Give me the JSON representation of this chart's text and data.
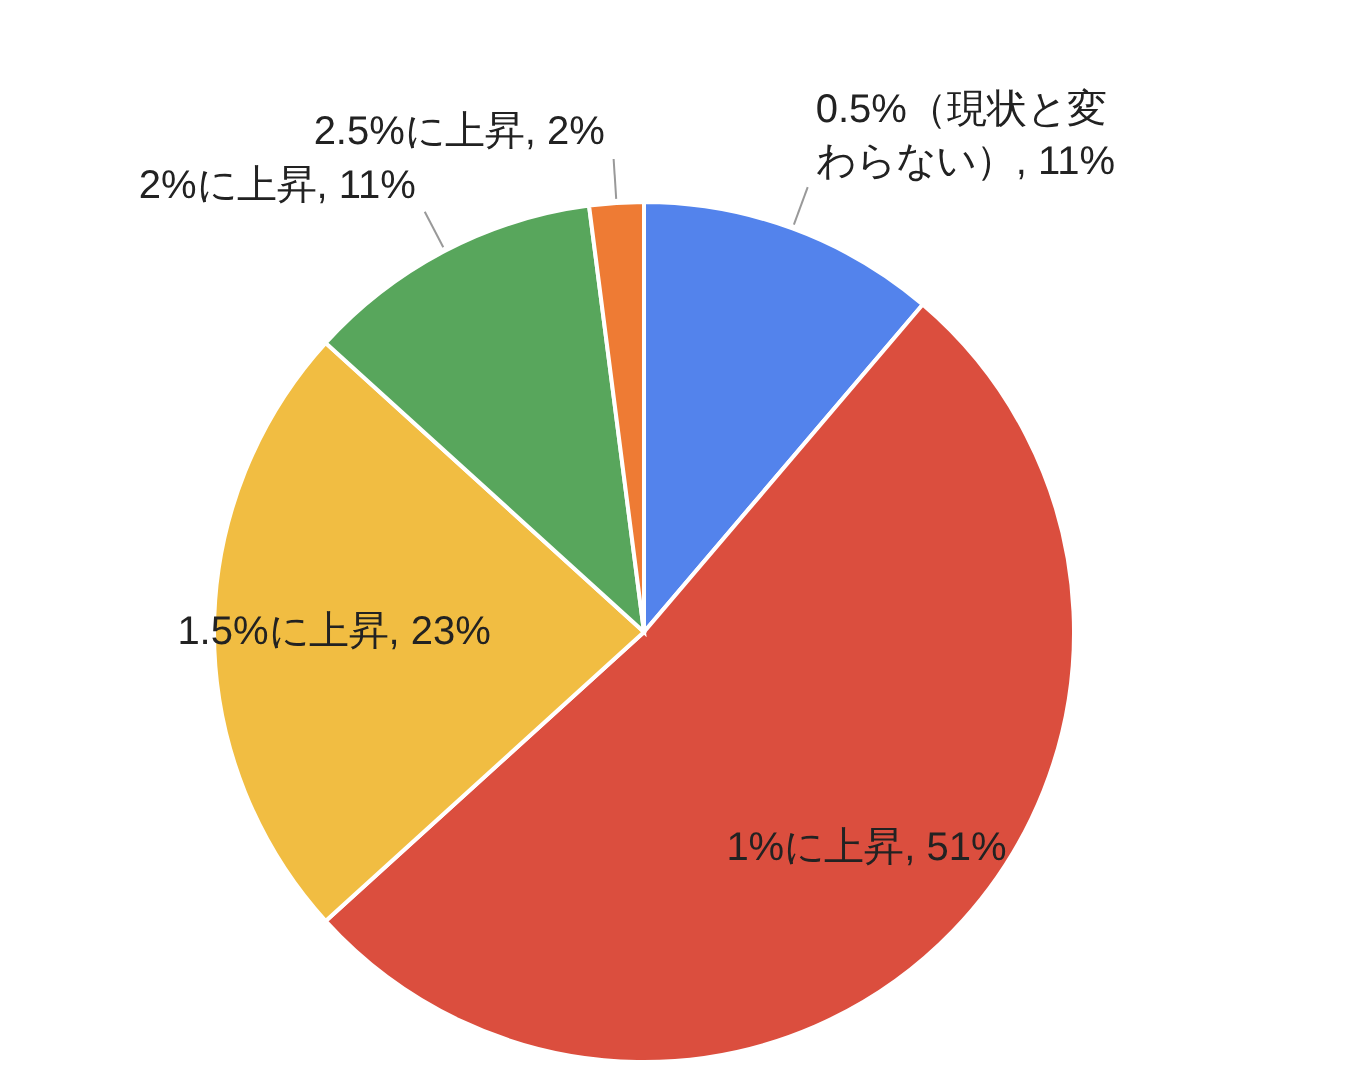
{
  "chart_data": {
    "type": "pie",
    "categories": [
      "0.5%（現状と変わらない）",
      "1%に上昇",
      "1.5%に上昇",
      "2%に上昇",
      "2.5%に上昇"
    ],
    "values": [
      11,
      51,
      23,
      11,
      2
    ],
    "value_labels": [
      "11%",
      "51%",
      "23%",
      "11%",
      "2%"
    ],
    "colors": [
      "#5383ec",
      "#db4e3e",
      "#f1bd42",
      "#58a65c",
      "#ee7b34"
    ]
  }
}
